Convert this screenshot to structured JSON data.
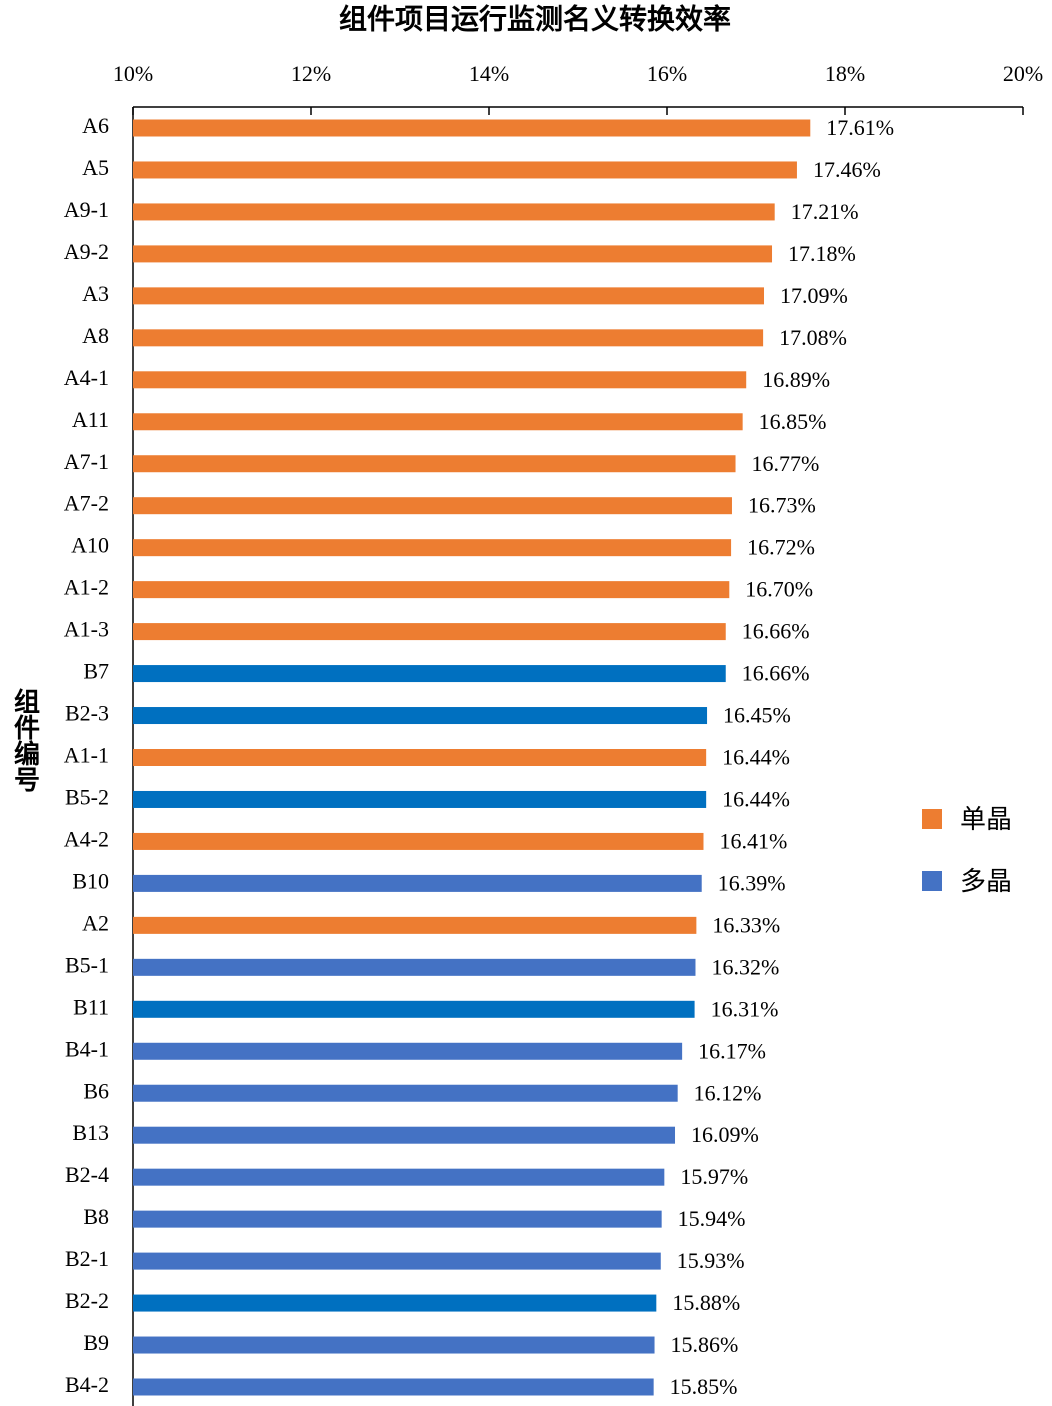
{
  "chart_data": {
    "type": "barh",
    "title": "组件项目运行监测名义转换效率",
    "y_label": "组件编号",
    "categories": [
      "A6",
      "A5",
      "A9-1",
      "A9-2",
      "A3",
      "A8",
      "A4-1",
      "A11",
      "A7-1",
      "A7-2",
      "A10",
      "A1-2",
      "A1-3",
      "B7",
      "B2-3",
      "A1-1",
      "B5-2",
      "A4-2",
      "B10",
      "A2",
      "B5-1",
      "B11",
      "B4-1",
      "B6",
      "B13",
      "B2-4",
      "B8",
      "B2-1",
      "B2-2",
      "B9",
      "B4-2"
    ],
    "series": [
      {
        "name": "单晶",
        "color": "#ed7d31",
        "values": [
          17.61,
          17.46,
          17.21,
          17.18,
          17.09,
          17.08,
          16.89,
          16.85,
          16.77,
          16.73,
          16.72,
          16.7,
          16.66,
          null,
          null,
          16.44,
          null,
          16.41,
          null,
          16.33,
          null,
          null,
          null,
          null,
          null,
          null,
          null,
          null,
          null,
          null,
          null
        ],
        "value_labels": [
          "17.61%",
          "17.46%",
          "17.21%",
          "17.18%",
          "17.09%",
          "17.08%",
          "16.89%",
          "16.85%",
          "16.77%",
          "16.73%",
          "16.72%",
          "16.70%",
          "16.66%",
          null,
          null,
          "16.44%",
          null,
          "16.41%",
          null,
          "16.33%",
          null,
          null,
          null,
          null,
          null,
          null,
          null,
          null,
          null,
          null,
          null
        ]
      },
      {
        "name": "多晶",
        "color": "#4472c4",
        "values": [
          null,
          null,
          null,
          null,
          null,
          null,
          null,
          null,
          null,
          null,
          null,
          null,
          null,
          16.66,
          16.45,
          null,
          16.44,
          null,
          16.39,
          null,
          16.32,
          16.31,
          16.17,
          16.12,
          16.09,
          15.97,
          15.94,
          15.93,
          15.88,
          15.86,
          15.85
        ],
        "value_labels": [
          null,
          null,
          null,
          null,
          null,
          null,
          null,
          null,
          null,
          null,
          null,
          null,
          null,
          "16.66%",
          "16.45%",
          null,
          "16.44%",
          null,
          "16.39%",
          null,
          "16.32%",
          "16.31%",
          "16.17%",
          "16.12%",
          "16.09%",
          "15.97%",
          "15.94%",
          "15.93%",
          "15.88%",
          "15.86%",
          "15.85%"
        ],
        "bar_colors": [
          null,
          null,
          null,
          null,
          null,
          null,
          null,
          null,
          null,
          null,
          null,
          null,
          null,
          "#0070c0",
          "#0070c0",
          null,
          "#0070c0",
          null,
          "#4472c4",
          null,
          "#4472c4",
          "#0070c0",
          "#4472c4",
          "#4472c4",
          "#4472c4",
          "#4472c4",
          "#4472c4",
          "#4472c4",
          "#0070c0",
          "#4472c4",
          "#4472c4"
        ]
      }
    ],
    "xlim": [
      10,
      20
    ],
    "xticks": [
      {
        "value": 10,
        "label": "10%"
      },
      {
        "value": 12,
        "label": "12%"
      },
      {
        "value": 14,
        "label": "14%"
      },
      {
        "value": 16,
        "label": "16%"
      },
      {
        "value": 18,
        "label": "18%"
      },
      {
        "value": 20,
        "label": "20%"
      }
    ],
    "legend": "right"
  }
}
